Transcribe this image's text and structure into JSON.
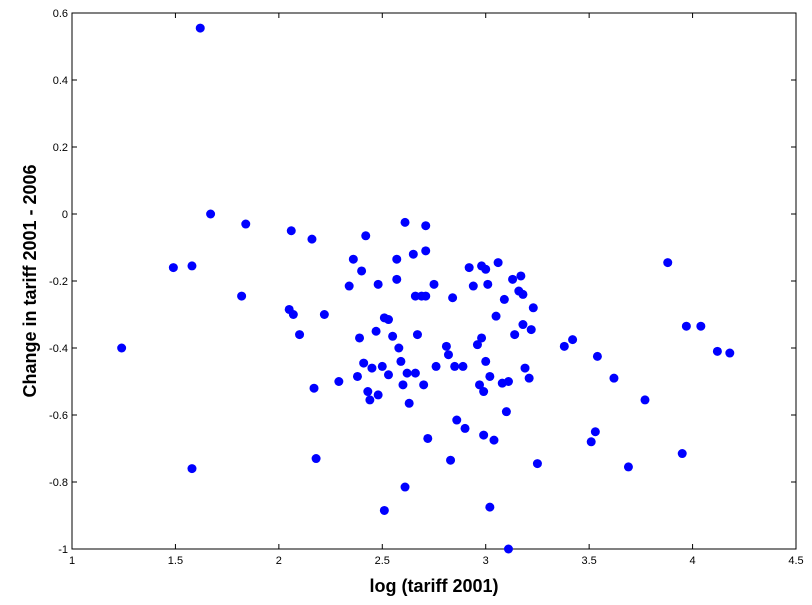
{
  "chart_data": {
    "type": "scatter",
    "xlabel": "log (tariff 2001)",
    "ylabel": "Change in tariff 2001 - 2006",
    "xlim": [
      1,
      4.5
    ],
    "ylim": [
      -1,
      0.6
    ],
    "xticks": [
      1,
      1.5,
      2,
      2.5,
      3,
      3.5,
      4,
      4.5
    ],
    "xtick_labels": [
      "1",
      "1.5",
      "2",
      "2.5",
      "3",
      "3.5",
      "4",
      "4.5"
    ],
    "yticks": [
      -1,
      -0.8,
      -0.6,
      -0.4,
      -0.2,
      0,
      0.2,
      0.4,
      0.6
    ],
    "ytick_labels": [
      "-1",
      "-0.8",
      "-0.6",
      "-0.4",
      "-0.2",
      "0",
      "0.2",
      "0.4",
      "0.6"
    ],
    "grid": false,
    "marker_color": "#0000ff",
    "points": [
      [
        1.24,
        -0.4
      ],
      [
        1.49,
        -0.16
      ],
      [
        1.58,
        -0.155
      ],
      [
        1.58,
        -0.76
      ],
      [
        1.62,
        0.555
      ],
      [
        1.67,
        0.0
      ],
      [
        1.82,
        -0.245
      ],
      [
        1.84,
        -0.03
      ],
      [
        2.05,
        -0.285
      ],
      [
        2.06,
        -0.05
      ],
      [
        2.07,
        -0.3
      ],
      [
        2.1,
        -0.36
      ],
      [
        2.16,
        -0.075
      ],
      [
        2.17,
        -0.52
      ],
      [
        2.18,
        -0.73
      ],
      [
        2.22,
        -0.3
      ],
      [
        2.29,
        -0.5
      ],
      [
        2.34,
        -0.215
      ],
      [
        2.36,
        -0.135
      ],
      [
        2.38,
        -0.485
      ],
      [
        2.39,
        -0.37
      ],
      [
        2.4,
        -0.17
      ],
      [
        2.41,
        -0.445
      ],
      [
        2.42,
        -0.065
      ],
      [
        2.43,
        -0.53
      ],
      [
        2.44,
        -0.555
      ],
      [
        2.45,
        -0.46
      ],
      [
        2.47,
        -0.35
      ],
      [
        2.48,
        -0.54
      ],
      [
        2.48,
        -0.21
      ],
      [
        2.5,
        -0.455
      ],
      [
        2.51,
        -0.31
      ],
      [
        2.51,
        -0.885
      ],
      [
        2.53,
        -0.48
      ],
      [
        2.53,
        -0.315
      ],
      [
        2.55,
        -0.365
      ],
      [
        2.57,
        -0.135
      ],
      [
        2.57,
        -0.195
      ],
      [
        2.58,
        -0.4
      ],
      [
        2.59,
        -0.44
      ],
      [
        2.6,
        -0.51
      ],
      [
        2.61,
        -0.025
      ],
      [
        2.61,
        -0.815
      ],
      [
        2.62,
        -0.475
      ],
      [
        2.63,
        -0.565
      ],
      [
        2.65,
        -0.12
      ],
      [
        2.66,
        -0.475
      ],
      [
        2.66,
        -0.245
      ],
      [
        2.67,
        -0.36
      ],
      [
        2.69,
        -0.245
      ],
      [
        2.7,
        -0.51
      ],
      [
        2.71,
        -0.245
      ],
      [
        2.71,
        -0.035
      ],
      [
        2.71,
        -0.11
      ],
      [
        2.72,
        -0.67
      ],
      [
        2.75,
        -0.21
      ],
      [
        2.76,
        -0.455
      ],
      [
        2.81,
        -0.395
      ],
      [
        2.82,
        -0.42
      ],
      [
        2.83,
        -0.735
      ],
      [
        2.84,
        -0.25
      ],
      [
        2.85,
        -0.455
      ],
      [
        2.86,
        -0.615
      ],
      [
        2.89,
        -0.455
      ],
      [
        2.9,
        -0.64
      ],
      [
        2.92,
        -0.16
      ],
      [
        2.94,
        -0.215
      ],
      [
        2.96,
        -0.39
      ],
      [
        2.97,
        -0.51
      ],
      [
        2.98,
        -0.37
      ],
      [
        2.98,
        -0.155
      ],
      [
        2.99,
        -0.53
      ],
      [
        2.99,
        -0.66
      ],
      [
        3.0,
        -0.44
      ],
      [
        3.0,
        -0.165
      ],
      [
        3.01,
        -0.21
      ],
      [
        3.02,
        -0.875
      ],
      [
        3.02,
        -0.485
      ],
      [
        3.04,
        -0.675
      ],
      [
        3.05,
        -0.305
      ],
      [
        3.06,
        -0.145
      ],
      [
        3.08,
        -0.505
      ],
      [
        3.09,
        -0.255
      ],
      [
        3.1,
        -0.59
      ],
      [
        3.11,
        -0.5
      ],
      [
        3.11,
        -1.0
      ],
      [
        3.13,
        -0.195
      ],
      [
        3.14,
        -0.36
      ],
      [
        3.16,
        -0.23
      ],
      [
        3.17,
        -0.185
      ],
      [
        3.18,
        -0.24
      ],
      [
        3.18,
        -0.33
      ],
      [
        3.19,
        -0.46
      ],
      [
        3.21,
        -0.49
      ],
      [
        3.22,
        -0.345
      ],
      [
        3.23,
        -0.28
      ],
      [
        3.25,
        -0.745
      ],
      [
        3.38,
        -0.395
      ],
      [
        3.42,
        -0.375
      ],
      [
        3.51,
        -0.68
      ],
      [
        3.53,
        -0.65
      ],
      [
        3.54,
        -0.425
      ],
      [
        3.62,
        -0.49
      ],
      [
        3.69,
        -0.755
      ],
      [
        3.77,
        -0.555
      ],
      [
        3.88,
        -0.145
      ],
      [
        3.95,
        -0.715
      ],
      [
        3.97,
        -0.335
      ],
      [
        4.04,
        -0.335
      ],
      [
        4.12,
        -0.41
      ],
      [
        4.18,
        -0.415
      ]
    ]
  }
}
